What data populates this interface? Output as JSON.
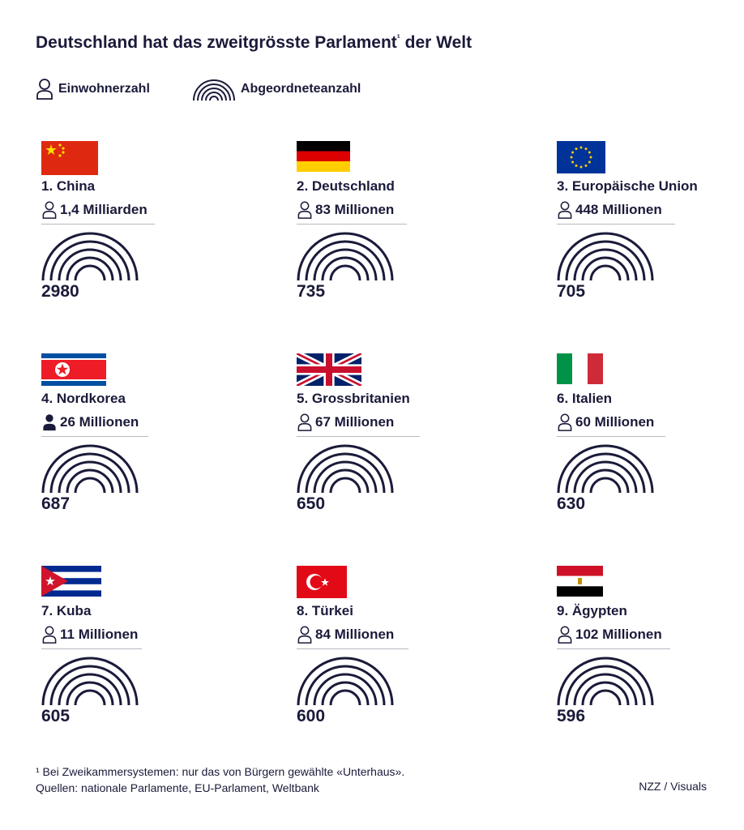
{
  "title": "Deutschland hat das zweitgrösste Parlament",
  "title_footnote_mark": "¹",
  "legend": {
    "population_label": "Einwohnerzahl",
    "seats_label": "Abgeordneteanzahl",
    "population_icon": "person-outline-icon",
    "seats_icon": "parliament-arch-icon"
  },
  "colors": {
    "text": "#1a1a3a",
    "divider": "#b9b9c4"
  },
  "countries": [
    {
      "label": "1. China",
      "population": "1,4 Milliarden",
      "seats": "2980",
      "flag": "china-flag-icon"
    },
    {
      "label": "2. Deutschland",
      "population": "83 Millionen",
      "seats": "735",
      "flag": "germany-flag-icon"
    },
    {
      "label": "3. Europäische Union",
      "population": "448 Millionen",
      "seats": "705",
      "flag": "eu-flag-icon"
    },
    {
      "label": "4. Nordkorea",
      "population": "26 Millionen",
      "seats": "687",
      "flag": "north-korea-flag-icon"
    },
    {
      "label": "5. Grossbritanien",
      "population": "67 Millionen",
      "seats": "650",
      "flag": "uk-flag-icon"
    },
    {
      "label": "6. Italien",
      "population": "60 Millionen",
      "seats": "630",
      "flag": "italy-flag-icon"
    },
    {
      "label": "7. Kuba",
      "population": "11 Millionen",
      "seats": "605",
      "flag": "cuba-flag-icon"
    },
    {
      "label": "8. Türkei",
      "population": "84 Millionen",
      "seats": "600",
      "flag": "turkey-flag-icon"
    },
    {
      "label": "9. Ägypten",
      "population": "102 Millionen",
      "seats": "596",
      "flag": "egypt-flag-icon"
    }
  ],
  "footnote": "¹ Bei Zweikammersystemen: nur das von Bürgern gewählte «Unterhaus».",
  "sources": "Quellen: nationale Parlamente, EU-Parlament, Weltbank",
  "credit": "NZZ / Visuals"
}
